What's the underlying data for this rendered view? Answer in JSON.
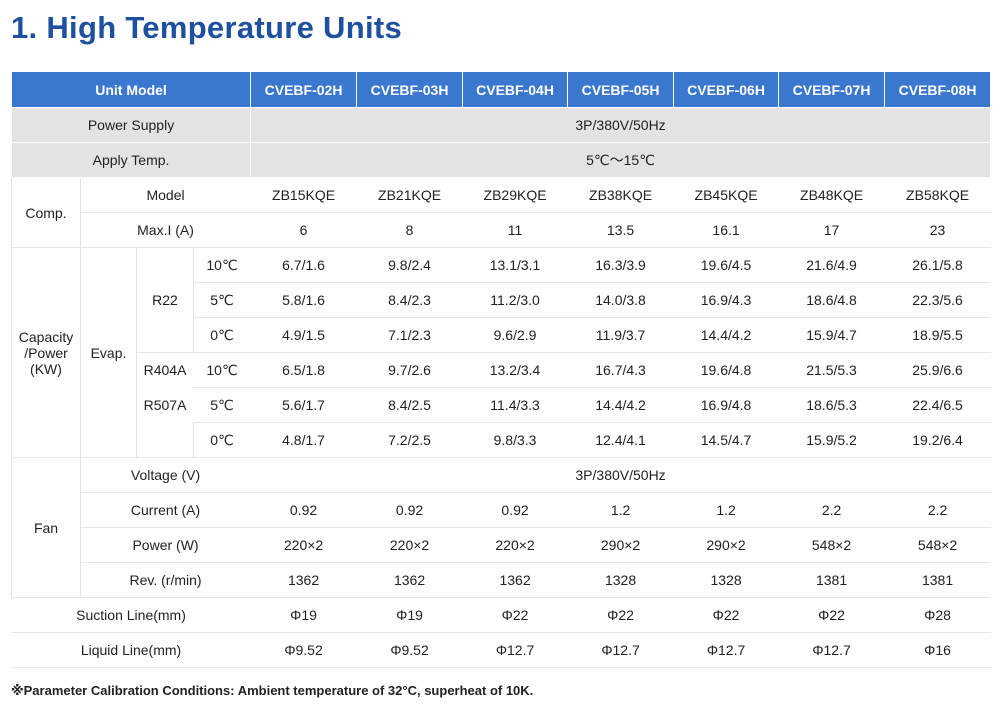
{
  "title": "1. High Temperature Units",
  "header": {
    "unit_model": "Unit Model",
    "models": [
      "CVEBF-02H",
      "CVEBF-03H",
      "CVEBF-04H",
      "CVEBF-05H",
      "CVEBF-06H",
      "CVEBF-07H",
      "CVEBF-08H"
    ]
  },
  "power_supply": {
    "label": "Power Supply",
    "value": "3P/380V/50Hz"
  },
  "apply_temp": {
    "label": "Apply Temp.",
    "value": "5℃～15℃"
  },
  "comp": {
    "label": "Comp.",
    "model": {
      "label": "Model",
      "values": [
        "ZB15KQE",
        "ZB21KQE",
        "ZB29KQE",
        "ZB38KQE",
        "ZB45KQE",
        "ZB48KQE",
        "ZB58KQE"
      ]
    },
    "max_i": {
      "label": "Max.I (A)",
      "values": [
        "6",
        "8",
        "11",
        "13.5",
        "16.1",
        "17",
        "23"
      ]
    }
  },
  "capacity": {
    "label_line1": "Capacity",
    "label_line2": "/Power",
    "label_line3": "(KW)",
    "evap_label": "Evap.",
    "r22_label": "R22",
    "r404a_label": "R404A",
    "r507a_label": "R507A",
    "rows": [
      {
        "temp": "10℃",
        "values": [
          "6.7/1.6",
          "9.8/2.4",
          "13.1/3.1",
          "16.3/3.9",
          "19.6/4.5",
          "21.6/4.9",
          "26.1/5.8"
        ]
      },
      {
        "temp": "5℃",
        "values": [
          "5.8/1.6",
          "8.4/2.3",
          "11.2/3.0",
          "14.0/3.8",
          "16.9/4.3",
          "18.6/4.8",
          "22.3/5.6"
        ]
      },
      {
        "temp": "0℃",
        "values": [
          "4.9/1.5",
          "7.1/2.3",
          "9.6/2.9",
          "11.9/3.7",
          "14.4/4.2",
          "15.9/4.7",
          "18.9/5.5"
        ]
      },
      {
        "temp": "10℃",
        "values": [
          "6.5/1.8",
          "9.7/2.6",
          "13.2/3.4",
          "16.7/4.3",
          "19.6/4.8",
          "21.5/5.3",
          "25.9/6.6"
        ]
      },
      {
        "temp": "5℃",
        "values": [
          "5.6/1.7",
          "8.4/2.5",
          "11.4/3.3",
          "14.4/4.2",
          "16.9/4.8",
          "18.6/5.3",
          "22.4/6.5"
        ]
      },
      {
        "temp": "0℃",
        "values": [
          "4.8/1.7",
          "7.2/2.5",
          "9.8/3.3",
          "12.4/4.1",
          "14.5/4.7",
          "15.9/5.2",
          "19.2/6.4"
        ]
      }
    ]
  },
  "fan": {
    "label": "Fan",
    "voltage": {
      "label": "Voltage (V)",
      "value": "3P/380V/50Hz"
    },
    "current": {
      "label": "Current (A)",
      "values": [
        "0.92",
        "0.92",
        "0.92",
        "1.2",
        "1.2",
        "2.2",
        "2.2"
      ]
    },
    "power": {
      "label": "Power (W)",
      "values": [
        "220×2",
        "220×2",
        "220×2",
        "290×2",
        "290×2",
        "548×2",
        "548×2"
      ]
    },
    "rev": {
      "label": "Rev. (r/min)",
      "values": [
        "1362",
        "1362",
        "1362",
        "1328",
        "1328",
        "1381",
        "1381"
      ]
    }
  },
  "suction": {
    "label": "Suction Line(mm)",
    "values": [
      "Φ19",
      "Φ19",
      "Φ22",
      "Φ22",
      "Φ22",
      "Φ22",
      "Φ28"
    ]
  },
  "liquid": {
    "label": "Liquid Line(mm)",
    "values": [
      "Φ9.52",
      "Φ9.52",
      "Φ12.7",
      "Φ12.7",
      "Φ12.7",
      "Φ12.7",
      "Φ16"
    ]
  },
  "note": "※Parameter Calibration Conditions: Ambient temperature of 32°C, superheat of 10K."
}
